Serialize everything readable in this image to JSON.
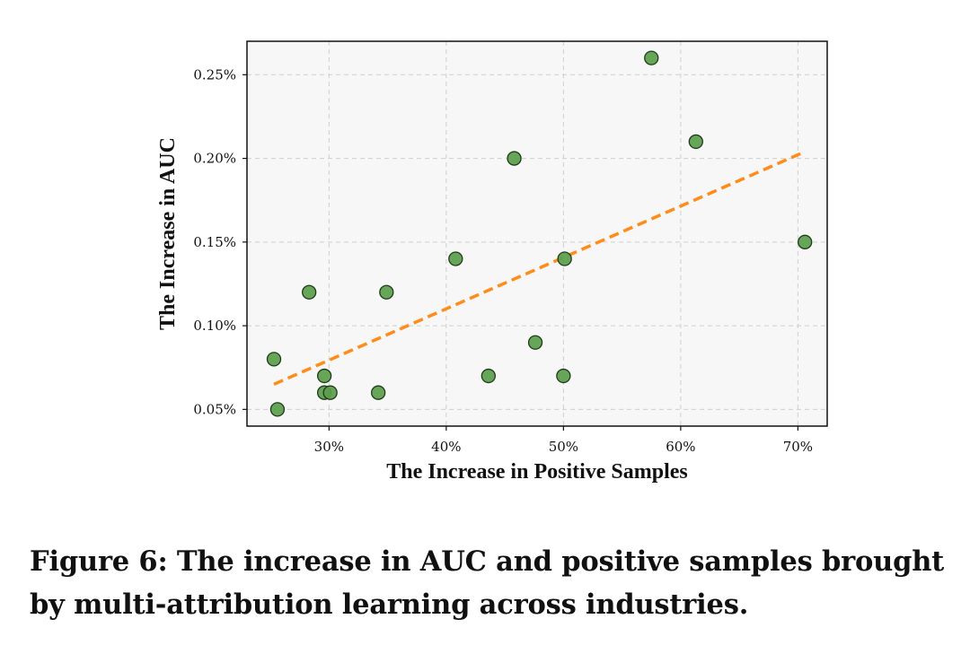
{
  "chart_data": {
    "type": "scatter",
    "xlabel": "The Increase in Positive Samples",
    "ylabel": "The Increase in AUC",
    "xlim": [
      23.0,
      72.5
    ],
    "ylim": [
      0.04,
      0.27
    ],
    "xticks": [
      30,
      40,
      50,
      60,
      70
    ],
    "xtick_labels": [
      "30%",
      "40%",
      "50%",
      "60%",
      "70%"
    ],
    "yticks": [
      0.05,
      0.1,
      0.15,
      0.2,
      0.25
    ],
    "ytick_labels": [
      "0.05%",
      "0.10%",
      "0.15%",
      "0.20%",
      "0.25%"
    ],
    "grid": true,
    "points": [
      {
        "x": 25.3,
        "y": 0.08
      },
      {
        "x": 25.6,
        "y": 0.05
      },
      {
        "x": 28.3,
        "y": 0.12
      },
      {
        "x": 29.6,
        "y": 0.07
      },
      {
        "x": 29.6,
        "y": 0.06
      },
      {
        "x": 30.1,
        "y": 0.06
      },
      {
        "x": 34.2,
        "y": 0.06
      },
      {
        "x": 34.9,
        "y": 0.12
      },
      {
        "x": 40.8,
        "y": 0.14
      },
      {
        "x": 43.6,
        "y": 0.07
      },
      {
        "x": 45.8,
        "y": 0.2
      },
      {
        "x": 47.6,
        "y": 0.09
      },
      {
        "x": 50.0,
        "y": 0.07
      },
      {
        "x": 50.1,
        "y": 0.14
      },
      {
        "x": 57.5,
        "y": 0.26
      },
      {
        "x": 61.3,
        "y": 0.21
      },
      {
        "x": 70.6,
        "y": 0.15
      }
    ],
    "trend_line": {
      "x": [
        25.3,
        70.6
      ],
      "y": [
        0.065,
        0.204
      ],
      "style": "dashed"
    },
    "colors": {
      "point_fill": "#5a9e4b",
      "point_edge": "#1f3a1a",
      "trend": "#ff8c1a",
      "plot_bg": "#f7f7f7",
      "grid": "#cfcfcf"
    }
  },
  "caption": "Figure 6: The increase in AUC and positive samples brought by multi-attribution learning across industries."
}
